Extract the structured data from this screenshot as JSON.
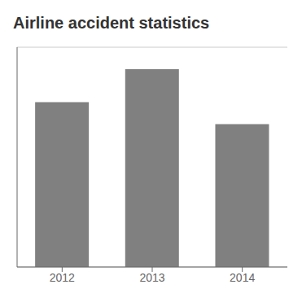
{
  "chart_data": {
    "type": "bar",
    "title": "Airline accident statistics",
    "categories": [
      "2012",
      "2013",
      "2014"
    ],
    "values": [
      75,
      90,
      65
    ],
    "color": "#808080",
    "ylim": [
      0,
      100
    ],
    "yticks": [
      0,
      20,
      40,
      60,
      80,
      100
    ],
    "grid": true,
    "tick_labels": "x"
  }
}
